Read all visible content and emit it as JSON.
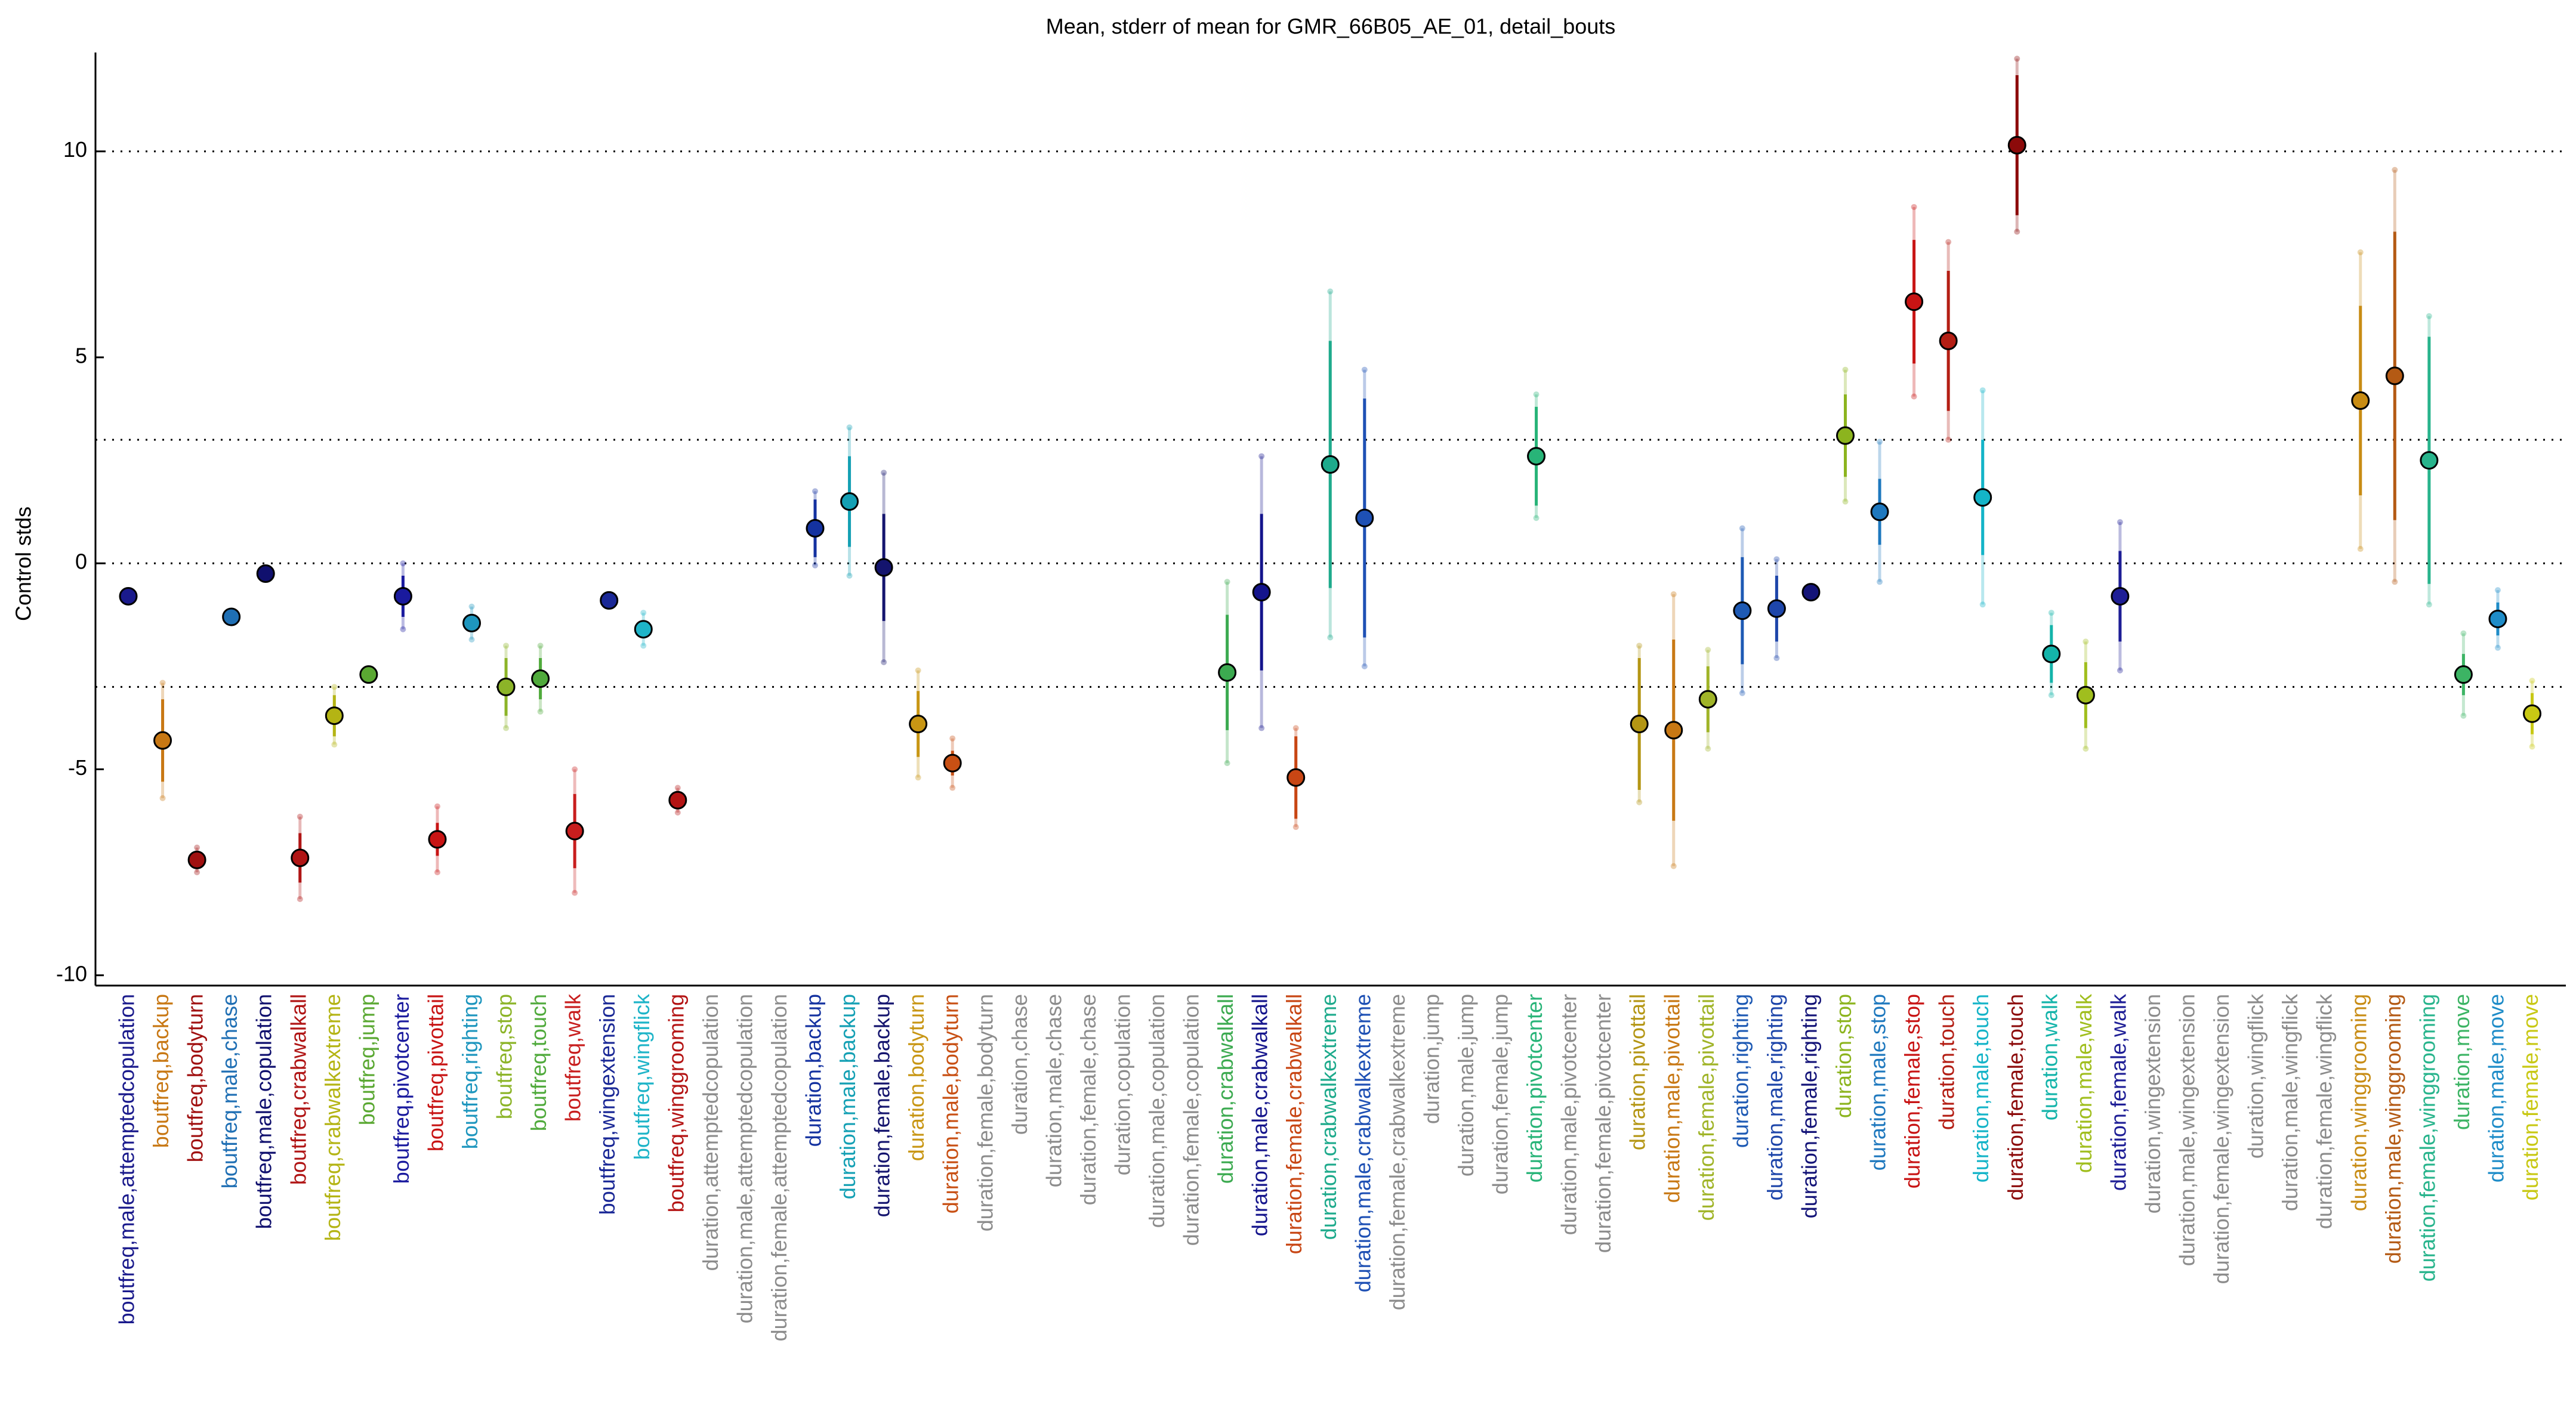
{
  "chart_data": {
    "type": "errorbar",
    "title": "Mean, stderr of mean for GMR_66B05_AE_01, detail_bouts",
    "ylabel": "Control stds",
    "categories": [
      "boutfreq,male,attemptedcopulation",
      "boutfreq,backup",
      "boutfreq,bodyturn",
      "boutfreq,male,chase",
      "boutfreq,male,copulation",
      "boutfreq,crabwalkall",
      "boutfreq,crabwalkextreme",
      "boutfreq,jump",
      "boutfreq,pivotcenter",
      "boutfreq,pivottail",
      "boutfreq,righting",
      "boutfreq,stop",
      "boutfreq,touch",
      "boutfreq,walk",
      "boutfreq,wingextension",
      "boutfreq,wingflick",
      "boutfreq,winggrooming",
      "duration,attemptedcopulation",
      "duration,male,attemptedcopulation",
      "duration,female,attemptedcopulation",
      "duration,backup",
      "duration,male,backup",
      "duration,female,backup",
      "duration,bodyturn",
      "duration,male,bodyturn",
      "duration,female,bodyturn",
      "duration,chase",
      "duration,male,chase",
      "duration,female,chase",
      "duration,copulation",
      "duration,male,copulation",
      "duration,female,copulation",
      "duration,crabwalkall",
      "duration,male,crabwalkall",
      "duration,female,crabwalkall",
      "duration,crabwalkextreme",
      "duration,male,crabwalkextreme",
      "duration,female,crabwalkextreme",
      "duration,jump",
      "duration,male,jump",
      "duration,female,jump",
      "duration,pivotcenter",
      "duration,male,pivotcenter",
      "duration,female,pivotcenter",
      "duration,pivottail",
      "duration,male,pivottail",
      "duration,female,pivottail",
      "duration,righting",
      "duration,male,righting",
      "duration,female,righting",
      "duration,stop",
      "duration,male,stop",
      "duration,female,stop",
      "duration,touch",
      "duration,male,touch",
      "duration,female,touch",
      "duration,walk",
      "duration,male,walk",
      "duration,female,walk",
      "duration,wingextension",
      "duration,male,wingextension",
      "duration,female,wingextension",
      "duration,wingflick",
      "duration,male,wingflick",
      "duration,female,wingflick",
      "duration,winggrooming",
      "duration,male,winggrooming",
      "duration,female,winggrooming",
      "duration,move",
      "duration,male,move",
      "duration,female,move"
    ],
    "values": [
      -0.8,
      -4.3,
      -7.2,
      -1.3,
      -0.25,
      -7.15,
      -3.7,
      -2.7,
      -0.8,
      -6.7,
      -1.45,
      -3.0,
      -2.8,
      -6.5,
      -0.9,
      -1.6,
      -5.75,
      null,
      null,
      null,
      0.85,
      1.5,
      -0.1,
      -3.9,
      -4.85,
      null,
      null,
      null,
      null,
      null,
      null,
      null,
      -2.65,
      -0.7,
      -5.2,
      2.4,
      1.1,
      null,
      null,
      null,
      null,
      2.6,
      null,
      null,
      -3.9,
      -4.05,
      -3.3,
      -1.15,
      -1.1,
      -0.7,
      3.1,
      1.25,
      6.35,
      5.4,
      1.6,
      10.15,
      -2.2,
      -3.2,
      -0.8,
      null,
      null,
      null,
      null,
      null,
      null,
      3.95,
      4.55,
      2.5,
      -2.7,
      -1.35,
      -3.65
    ],
    "errors": [
      0.1,
      1.0,
      0.1,
      0.1,
      0.1,
      0.6,
      0.5,
      0.1,
      0.5,
      0.4,
      0.2,
      0.7,
      0.5,
      0.9,
      0.05,
      0.2,
      0.1,
      null,
      null,
      null,
      0.7,
      1.1,
      1.3,
      0.8,
      0.3,
      null,
      null,
      null,
      null,
      null,
      null,
      null,
      1.4,
      1.9,
      1.0,
      3.0,
      2.9,
      null,
      null,
      null,
      null,
      1.2,
      null,
      null,
      1.6,
      2.2,
      0.8,
      1.3,
      0.8,
      0.1,
      1.0,
      0.8,
      1.5,
      1.7,
      1.4,
      1.7,
      0.7,
      0.8,
      1.1,
      null,
      null,
      null,
      null,
      null,
      null,
      2.3,
      3.5,
      3.0,
      0.5,
      0.4,
      0.5
    ],
    "errors2": [
      0.1,
      1.4,
      0.3,
      0.1,
      0.1,
      1.0,
      0.7,
      0.1,
      0.8,
      0.8,
      0.4,
      1.0,
      0.8,
      1.5,
      0.1,
      0.4,
      0.3,
      null,
      null,
      null,
      0.9,
      1.8,
      2.3,
      1.3,
      0.6,
      null,
      null,
      null,
      null,
      null,
      null,
      null,
      2.2,
      3.3,
      1.2,
      4.2,
      3.6,
      null,
      null,
      null,
      null,
      1.5,
      null,
      null,
      1.9,
      3.3,
      1.2,
      2.0,
      1.2,
      0.1,
      1.6,
      1.7,
      2.3,
      2.4,
      2.6,
      2.1,
      1.0,
      1.3,
      1.8,
      null,
      null,
      null,
      null,
      null,
      null,
      3.6,
      5.0,
      3.5,
      1.0,
      0.7,
      0.8
    ],
    "colors": [
      "#1a1a8c",
      "#c87814",
      "#a01010",
      "#1f6fb4",
      "#10106e",
      "#b01515",
      "#b4b414",
      "#5aa832",
      "#1a1a9e",
      "#c81414",
      "#1e96be",
      "#8cb428",
      "#50aa3c",
      "#c81e1e",
      "#1a2896",
      "#1eb4c8",
      "#b41414",
      "#8c8c8c",
      "#8c8c8c",
      "#8c8c8c",
      "#1432a0",
      "#14a0b4",
      "#14146e",
      "#c89614",
      "#c85014",
      "#8c8c8c",
      "#8c8c8c",
      "#8c8c8c",
      "#8c8c8c",
      "#8c8c8c",
      "#8c8c8c",
      "#8c8c8c",
      "#3caa50",
      "#14148c",
      "#c84614",
      "#1eaa8c",
      "#1e50b4",
      "#8c8c8c",
      "#8c8c8c",
      "#8c8c8c",
      "#8c8c8c",
      "#28b478",
      "#8c8c8c",
      "#8c8c8c",
      "#b49614",
      "#c87814",
      "#a0b428",
      "#1e5ab4",
      "#1e46aa",
      "#141478",
      "#8cb41e",
      "#1e78be",
      "#c81414",
      "#b41e14",
      "#14b4c8",
      "#8c0a0a",
      "#14b4aa",
      "#a0be1e",
      "#1e1e96",
      "#8c8c8c",
      "#8c8c8c",
      "#8c8c8c",
      "#8c8c8c",
      "#8c8c8c",
      "#8c8c8c",
      "#c88c14",
      "#b45a14",
      "#28b48c",
      "#3cb464",
      "#1e8cc8",
      "#c8c814"
    ],
    "ylim": [
      -10.25,
      12.4
    ],
    "yticks": [
      -10,
      -5,
      0,
      5,
      10
    ],
    "hlines": [
      -3,
      0,
      3,
      10
    ]
  }
}
